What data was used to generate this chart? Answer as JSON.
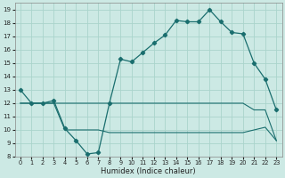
{
  "xlabel": "Humidex (Indice chaleur)",
  "bg_color": "#cce9e4",
  "grid_color": "#aad4cc",
  "line_color": "#1a6e6e",
  "xlim": [
    -0.5,
    23.5
  ],
  "ylim": [
    8,
    19.5
  ],
  "yticks": [
    8,
    9,
    10,
    11,
    12,
    13,
    14,
    15,
    16,
    17,
    18,
    19
  ],
  "xticks": [
    0,
    1,
    2,
    3,
    4,
    5,
    6,
    7,
    8,
    9,
    10,
    11,
    12,
    13,
    14,
    15,
    16,
    17,
    18,
    19,
    20,
    21,
    22,
    23
  ],
  "curve_main_x": [
    0,
    1,
    2,
    3,
    4,
    5,
    6,
    7,
    8,
    9,
    10,
    11,
    12,
    13,
    14,
    15,
    16,
    17,
    18,
    19,
    20,
    21,
    22,
    23
  ],
  "curve_main_y": [
    13.0,
    12.0,
    12.0,
    12.2,
    10.1,
    9.2,
    8.2,
    8.3,
    12.0,
    15.3,
    15.1,
    15.8,
    16.5,
    17.1,
    18.2,
    18.1,
    18.1,
    19.0,
    18.1,
    17.3,
    17.2,
    15.0,
    13.8,
    11.5
  ],
  "curve_upper_x": [
    0,
    1,
    2,
    3,
    4,
    5,
    6,
    7,
    8,
    9,
    10,
    11,
    12,
    13,
    14,
    15,
    16,
    17,
    18,
    19,
    20,
    21,
    22,
    23
  ],
  "curve_upper_y": [
    12.0,
    12.0,
    12.0,
    12.0,
    12.0,
    12.0,
    12.0,
    12.0,
    12.0,
    12.0,
    12.0,
    12.0,
    12.0,
    12.0,
    12.0,
    12.0,
    12.0,
    12.0,
    12.0,
    12.0,
    12.0,
    11.5,
    11.5,
    9.2
  ],
  "curve_lower_x": [
    0,
    1,
    2,
    3,
    4,
    5,
    6,
    7,
    8,
    9,
    10,
    11,
    12,
    13,
    14,
    15,
    16,
    17,
    18,
    19,
    20,
    21,
    22,
    23
  ],
  "curve_lower_y": [
    12.0,
    12.0,
    12.0,
    12.0,
    10.0,
    10.0,
    10.0,
    10.0,
    9.8,
    9.8,
    9.8,
    9.8,
    9.8,
    9.8,
    9.8,
    9.8,
    9.8,
    9.8,
    9.8,
    9.8,
    9.8,
    10.0,
    10.2,
    9.2
  ]
}
